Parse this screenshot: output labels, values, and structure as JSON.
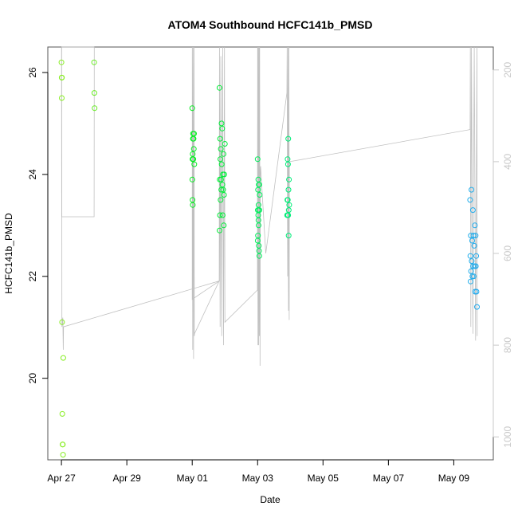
{
  "chart_data": {
    "type": "scatter",
    "title": "ATOM4 Southbound HCFC141b_PMSD",
    "xlabel": "Date",
    "ylabel": "HCFC141b_PMSD",
    "x_ticks": [
      {
        "date": "2016-04-27",
        "label": "Apr 27"
      },
      {
        "date": "2016-04-29",
        "label": "Apr 29"
      },
      {
        "date": "2016-05-01",
        "label": "May 01"
      },
      {
        "date": "2016-05-03",
        "label": "May 03"
      },
      {
        "date": "2016-05-05",
        "label": "May 05"
      },
      {
        "date": "2016-05-07",
        "label": "May 07"
      },
      {
        "date": "2016-05-09",
        "label": "May 09"
      }
    ],
    "xlim": [
      "2016-04-26 14:00",
      "2016-05-10 05:00"
    ],
    "ylim": [
      18.4,
      26.5
    ],
    "y_ticks": [
      20,
      22,
      24,
      26
    ],
    "y2label": "",
    "y2lim": [
      1050,
      150
    ],
    "y2_ticks": [
      200,
      400,
      600,
      800,
      1000
    ],
    "grid": false,
    "point_color_scale": [
      "#88ee22",
      "#00ee22",
      "#00eeaa",
      "#22aaee"
    ],
    "line_color": "#c0c0c0",
    "series": [
      {
        "points": [
          [
            "2016-04-27 00:00",
            26.2
          ],
          [
            "2016-04-27 00:10",
            25.9
          ],
          [
            "2016-04-27 00:20",
            25.9
          ],
          [
            "2016-04-27 00:15",
            25.5
          ],
          [
            "2016-04-27 00:30",
            21.1
          ],
          [
            "2016-04-27 01:20",
            20.4
          ],
          [
            "2016-04-27 00:40",
            19.3
          ],
          [
            "2016-04-27 00:50",
            18.7
          ],
          [
            "2016-04-27 01:00",
            18.7
          ],
          [
            "2016-04-27 01:10",
            18.5
          ],
          [
            "2016-04-28 00:00",
            26.2
          ],
          [
            "2016-04-28 00:10",
            25.6
          ],
          [
            "2016-04-28 00:20",
            25.3
          ],
          [
            "2016-05-01 00:00",
            25.3
          ],
          [
            "2016-05-01 00:40",
            24.8
          ],
          [
            "2016-05-01 01:20",
            24.8
          ],
          [
            "2016-05-01 00:30",
            24.7
          ],
          [
            "2016-05-01 01:00",
            24.7
          ],
          [
            "2016-05-01 01:10",
            24.5
          ],
          [
            "2016-05-01 00:20",
            24.4
          ],
          [
            "2016-05-01 00:10",
            24.3
          ],
          [
            "2016-05-01 00:50",
            24.3
          ],
          [
            "2016-05-01 01:30",
            24.2
          ],
          [
            "2016-05-01 00:05",
            23.9
          ],
          [
            "2016-05-01 00:15",
            23.5
          ],
          [
            "2016-05-01 00:25",
            23.4
          ],
          [
            "2016-05-01 20:00",
            25.7
          ],
          [
            "2016-05-01 21:30",
            25.0
          ],
          [
            "2016-05-01 22:00",
            24.9
          ],
          [
            "2016-05-01 20:30",
            24.7
          ],
          [
            "2016-05-02 00:00",
            24.6
          ],
          [
            "2016-05-01 21:00",
            24.5
          ],
          [
            "2016-05-01 23:00",
            24.4
          ],
          [
            "2016-05-01 20:40",
            24.3
          ],
          [
            "2016-05-01 21:40",
            24.2
          ],
          [
            "2016-05-01 22:30",
            24.0
          ],
          [
            "2016-05-01 23:30",
            24.0
          ],
          [
            "2016-05-01 20:10",
            23.9
          ],
          [
            "2016-05-01 21:10",
            23.9
          ],
          [
            "2016-05-01 22:10",
            23.8
          ],
          [
            "2016-05-01 22:40",
            23.7
          ],
          [
            "2016-05-01 21:20",
            23.7
          ],
          [
            "2016-05-01 23:20",
            23.6
          ],
          [
            "2016-05-01 20:50",
            23.5
          ],
          [
            "2016-05-01 22:20",
            23.2
          ],
          [
            "2016-05-01 20:20",
            23.2
          ],
          [
            "2016-05-01 23:10",
            23.0
          ],
          [
            "2016-05-01 20:05",
            22.9
          ],
          [
            "2016-05-03 00:00",
            24.3
          ],
          [
            "2016-05-03 00:30",
            23.9
          ],
          [
            "2016-05-03 00:50",
            23.8
          ],
          [
            "2016-05-03 01:10",
            23.8
          ],
          [
            "2016-05-03 00:20",
            23.7
          ],
          [
            "2016-05-03 01:30",
            23.6
          ],
          [
            "2016-05-03 00:40",
            23.4
          ],
          [
            "2016-05-03 00:10",
            23.3
          ],
          [
            "2016-05-03 01:00",
            23.3
          ],
          [
            "2016-05-03 01:20",
            23.3
          ],
          [
            "2016-05-03 00:25",
            23.2
          ],
          [
            "2016-05-03 00:35",
            23.1
          ],
          [
            "2016-05-03 00:45",
            23.0
          ],
          [
            "2016-05-03 00:15",
            22.8
          ],
          [
            "2016-05-03 00:05",
            22.7
          ],
          [
            "2016-05-03 00:55",
            22.6
          ],
          [
            "2016-05-03 01:05",
            22.5
          ],
          [
            "2016-05-03 01:15",
            22.4
          ],
          [
            "2016-05-03 22:30",
            24.7
          ],
          [
            "2016-05-03 22:00",
            24.3
          ],
          [
            "2016-05-03 22:20",
            24.2
          ],
          [
            "2016-05-03 23:00",
            23.9
          ],
          [
            "2016-05-03 22:40",
            23.7
          ],
          [
            "2016-05-03 21:50",
            23.5
          ],
          [
            "2016-05-03 22:10",
            23.5
          ],
          [
            "2016-05-03 23:10",
            23.4
          ],
          [
            "2016-05-03 22:50",
            23.3
          ],
          [
            "2016-05-03 21:40",
            23.2
          ],
          [
            "2016-05-03 22:05",
            23.2
          ],
          [
            "2016-05-03 22:25",
            23.2
          ],
          [
            "2016-05-03 22:45",
            22.8
          ],
          [
            "2016-05-09 13:00",
            23.7
          ],
          [
            "2016-05-09 12:00",
            23.5
          ],
          [
            "2016-05-09 14:00",
            23.3
          ],
          [
            "2016-05-09 15:30",
            23.0
          ],
          [
            "2016-05-09 12:30",
            22.8
          ],
          [
            "2016-05-09 14:30",
            22.8
          ],
          [
            "2016-05-09 16:00",
            22.8
          ],
          [
            "2016-05-09 13:30",
            22.7
          ],
          [
            "2016-05-09 15:00",
            22.6
          ],
          [
            "2016-05-09 12:10",
            22.4
          ],
          [
            "2016-05-09 16:30",
            22.4
          ],
          [
            "2016-05-09 13:10",
            22.3
          ],
          [
            "2016-05-09 14:10",
            22.2
          ],
          [
            "2016-05-09 15:10",
            22.2
          ],
          [
            "2016-05-09 16:10",
            22.2
          ],
          [
            "2016-05-09 12:40",
            22.1
          ],
          [
            "2016-05-09 13:40",
            22.0
          ],
          [
            "2016-05-09 14:40",
            22.0
          ],
          [
            "2016-05-09 12:20",
            21.9
          ],
          [
            "2016-05-09 15:40",
            21.7
          ],
          [
            "2016-05-09 16:40",
            21.7
          ],
          [
            "2016-05-09 17:00",
            21.4
          ]
        ]
      }
    ],
    "altitude_trace": [
      [
        "2016-04-27 00:00",
        150
      ],
      [
        "2016-04-27 00:05",
        150
      ],
      [
        "2016-04-27 00:10",
        520
      ],
      [
        "2016-04-28 00:00",
        520
      ],
      [
        "2016-04-28 00:05",
        150
      ],
      [
        "2016-04-28 00:10",
        150
      ],
      [
        "2016-04-27 00:10",
        150
      ],
      [
        "2016-04-27 00:20",
        760
      ],
      [
        "2016-04-27 01:00",
        740
      ],
      [
        "2016-04-27 01:20",
        810
      ],
      [
        "2016-04-27 01:30",
        760
      ],
      [
        "2016-05-01 20:00",
        660
      ],
      [
        "2016-05-01 00:00",
        700
      ],
      [
        "2016-05-01 00:05",
        150
      ],
      [
        "2016-05-01 00:20",
        810
      ],
      [
        "2016-05-01 00:40",
        150
      ],
      [
        "2016-05-01 01:00",
        830
      ],
      [
        "2016-05-01 01:20",
        150
      ],
      [
        "2016-05-01 01:30",
        780
      ],
      [
        "2016-05-01 01:40",
        775
      ],
      [
        "2016-05-01 19:50",
        660
      ],
      [
        "2016-05-01 20:00",
        150
      ],
      [
        "2016-05-01 20:30",
        760
      ],
      [
        "2016-05-01 21:00",
        170
      ],
      [
        "2016-05-01 21:40",
        780
      ],
      [
        "2016-05-01 22:20",
        150
      ],
      [
        "2016-05-01 23:00",
        800
      ],
      [
        "2016-05-01 23:40",
        150
      ],
      [
        "2016-05-02 00:00",
        750
      ],
      [
        "2016-05-02 23:50",
        680
      ],
      [
        "2016-05-03 00:00",
        150
      ],
      [
        "2016-05-03 00:15",
        800
      ],
      [
        "2016-05-03 00:30",
        150
      ],
      [
        "2016-05-03 00:45",
        800
      ],
      [
        "2016-05-03 01:00",
        150
      ],
      [
        "2016-05-03 01:15",
        780
      ],
      [
        "2016-05-03 01:30",
        150
      ],
      [
        "2016-05-03 01:45",
        845
      ],
      [
        "2016-05-03 02:00",
        420
      ],
      [
        "2016-05-03 02:10",
        410
      ],
      [
        "2016-05-03 06:00",
        600
      ],
      [
        "2016-05-03 21:30",
        250
      ],
      [
        "2016-05-03 21:40",
        150
      ],
      [
        "2016-05-03 22:00",
        650
      ],
      [
        "2016-05-03 22:20",
        150
      ],
      [
        "2016-05-03 22:40",
        725
      ],
      [
        "2016-05-03 23:00",
        150
      ],
      [
        "2016-05-03 23:10",
        745
      ],
      [
        "2016-05-03 23:20",
        400
      ],
      [
        "2016-05-09 12:00",
        330
      ],
      [
        "2016-05-09 12:10",
        150
      ],
      [
        "2016-05-09 12:30",
        760
      ],
      [
        "2016-05-09 13:00",
        150
      ],
      [
        "2016-05-09 14:00",
        775
      ],
      [
        "2016-05-09 15:00",
        150
      ],
      [
        "2016-05-09 16:00",
        790
      ],
      [
        "2016-05-09 17:00",
        150
      ],
      [
        "2016-05-09 17:10",
        780
      ]
    ]
  }
}
